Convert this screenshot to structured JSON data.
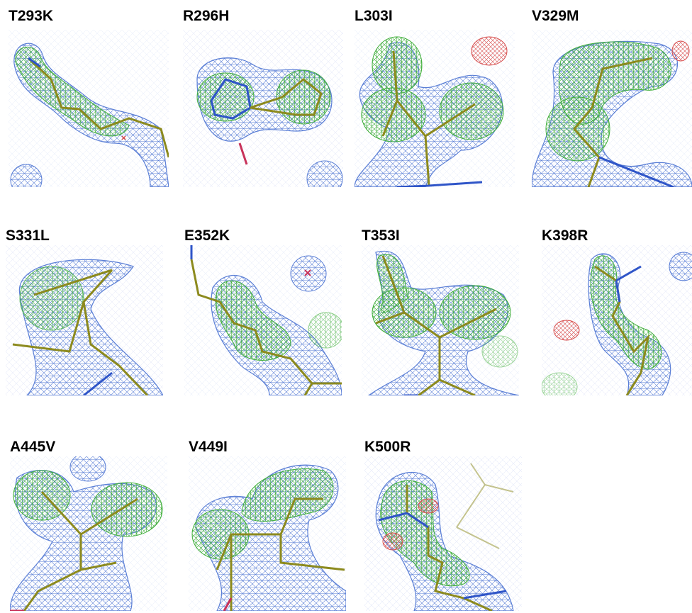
{
  "figure": {
    "panels": [
      {
        "label": "T293K"
      },
      {
        "label": "R296H"
      },
      {
        "label": "L303I"
      },
      {
        "label": "V329M"
      },
      {
        "label": "S331L"
      },
      {
        "label": "E352K"
      },
      {
        "label": "T353I"
      },
      {
        "label": "K398R"
      },
      {
        "label": "A445V"
      },
      {
        "label": "V449I"
      },
      {
        "label": "K500R"
      }
    ]
  },
  "colors": {
    "mesh_blue": "#5b7fd6",
    "mesh_blue_light": "#b9c7ee",
    "mesh_green": "#3fae3a",
    "mesh_red": "#d64a4a",
    "stick_olive": "#8c8a1e",
    "stick_blue": "#2f55c8",
    "stick_red": "#c8325a",
    "label": "#000000"
  }
}
